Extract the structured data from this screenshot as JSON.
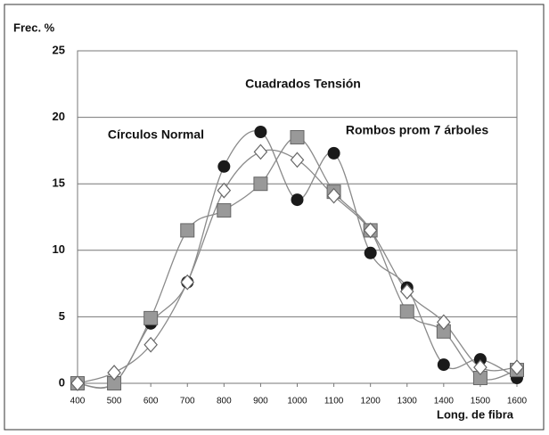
{
  "chart_data": {
    "type": "line",
    "y_label": "Frec. %",
    "x_label": "Long. de fibra",
    "annotations": [
      "Cuadrados Tensión",
      "Círculos Normal",
      "Rombos prom 7 árboles"
    ],
    "x": [
      400,
      500,
      600,
      700,
      800,
      900,
      1000,
      1100,
      1200,
      1300,
      1400,
      1500,
      1600
    ],
    "series": [
      {
        "marker": "circle",
        "color": "#1a1a1a",
        "values": [
          0,
          0,
          4.5,
          7.6,
          16.3,
          18.9,
          13.8,
          17.3,
          9.8,
          7.2,
          1.4,
          1.8,
          0.4
        ]
      },
      {
        "marker": "square",
        "color": "#999999",
        "values": [
          0,
          0,
          4.9,
          11.5,
          13,
          15,
          18.5,
          14.4,
          11.5,
          5.4,
          3.9,
          0.4,
          1.0
        ]
      },
      {
        "marker": "diamond",
        "color": "#ffffff",
        "values": [
          0,
          0.8,
          2.9,
          7.6,
          14.5,
          17.4,
          16.8,
          14.1,
          11.5,
          6.9,
          4.6,
          1.2,
          1.2
        ]
      }
    ],
    "line_color": "#8a8a8a",
    "xlim": [
      400,
      1600
    ],
    "xticks": [
      400,
      500,
      600,
      700,
      800,
      900,
      1000,
      1100,
      1200,
      1300,
      1400,
      1500,
      1600
    ],
    "ylim": [
      0,
      25
    ],
    "yticks": [
      0,
      5,
      10,
      15,
      20,
      25
    ],
    "grid": true
  }
}
